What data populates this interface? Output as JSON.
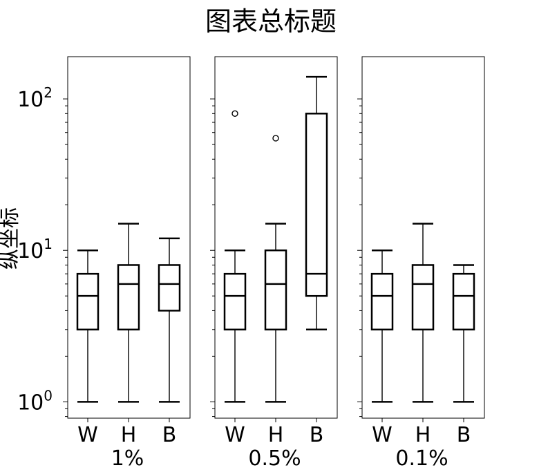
{
  "chart_data": {
    "type": "box",
    "title": "图表总标题",
    "ylabel": "纵坐标",
    "yscale": "log",
    "ylim": [
      0.78,
      190
    ],
    "yticks": [
      {
        "value": 1,
        "base": "10",
        "exp": "0"
      },
      {
        "value": 10,
        "base": "10",
        "exp": "1"
      },
      {
        "value": 100,
        "base": "10",
        "exp": "2"
      }
    ],
    "categories": [
      "W",
      "H",
      "B"
    ],
    "panels": [
      {
        "label": "1%",
        "boxes": [
          {
            "category": "W",
            "whisker_low": 1,
            "q1": 3,
            "median": 5,
            "q3": 7,
            "whisker_high": 10,
            "outliers": []
          },
          {
            "category": "H",
            "whisker_low": 1,
            "q1": 3,
            "median": 6,
            "q3": 8,
            "whisker_high": 15,
            "outliers": []
          },
          {
            "category": "B",
            "whisker_low": 1,
            "q1": 4,
            "median": 6,
            "q3": 8,
            "whisker_high": 12,
            "outliers": []
          }
        ]
      },
      {
        "label": "0.5%",
        "boxes": [
          {
            "category": "W",
            "whisker_low": 1,
            "q1": 3,
            "median": 5,
            "q3": 7,
            "whisker_high": 10,
            "outliers": [
              80
            ]
          },
          {
            "category": "H",
            "whisker_low": 1,
            "q1": 3,
            "median": 6,
            "q3": 10,
            "whisker_high": 15,
            "outliers": [
              55
            ]
          },
          {
            "category": "B",
            "whisker_low": 3,
            "q1": 5,
            "median": 7,
            "q3": 80,
            "whisker_high": 140,
            "outliers": []
          }
        ]
      },
      {
        "label": "0.1%",
        "boxes": [
          {
            "category": "W",
            "whisker_low": 1,
            "q1": 3,
            "median": 5,
            "q3": 7,
            "whisker_high": 10,
            "outliers": []
          },
          {
            "category": "H",
            "whisker_low": 1,
            "q1": 3,
            "median": 6,
            "q3": 8,
            "whisker_high": 15,
            "outliers": []
          },
          {
            "category": "B",
            "whisker_low": 1,
            "q1": 3,
            "median": 5,
            "q3": 7,
            "whisker_high": 8,
            "outliers": []
          }
        ]
      }
    ]
  }
}
